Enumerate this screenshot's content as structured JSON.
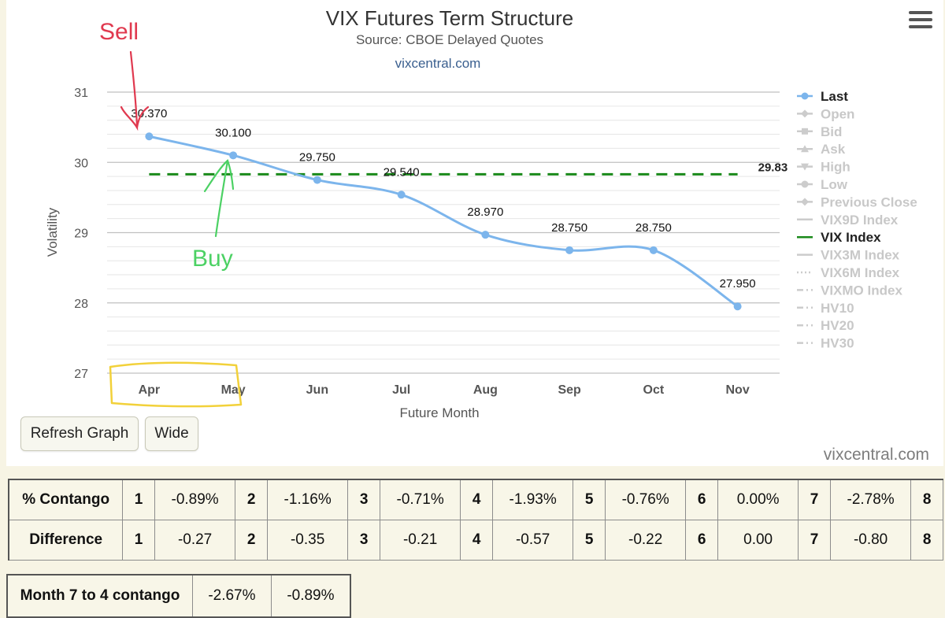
{
  "chart_data": {
    "type": "line",
    "title": "VIX Futures Term Structure",
    "subtitle": "Source: CBOE Delayed Quotes",
    "credit_link": "vixcentral.com",
    "xlabel": "Future Month",
    "ylabel": "Volatility",
    "categories": [
      "Apr",
      "May",
      "Jun",
      "Jul",
      "Aug",
      "Sep",
      "Oct",
      "Nov"
    ],
    "ylim": [
      27,
      31
    ],
    "yticks": [
      27,
      28,
      29,
      30,
      31
    ],
    "grid": true,
    "series": [
      {
        "name": "Last",
        "color": "#7cb5ec",
        "values": [
          30.37,
          30.1,
          29.75,
          29.54,
          28.97,
          28.75,
          28.75,
          27.95
        ],
        "labels": [
          "30.370",
          "30.100",
          "29.750",
          "29.540",
          "28.970",
          "28.750",
          "28.750",
          "27.950"
        ]
      },
      {
        "name": "VIX Index",
        "color": "#1a8a1a",
        "style": "dashed",
        "value": 29.83,
        "label": "29.83"
      }
    ],
    "legend": {
      "position": "right",
      "items": [
        {
          "name": "Last",
          "active": true,
          "marker": "circle-line"
        },
        {
          "name": "Open",
          "active": false,
          "marker": "diamond-line"
        },
        {
          "name": "Bid",
          "active": false,
          "marker": "square-line"
        },
        {
          "name": "Ask",
          "active": false,
          "marker": "triangle-line"
        },
        {
          "name": "High",
          "active": false,
          "marker": "triangle-down-line"
        },
        {
          "name": "Low",
          "active": false,
          "marker": "circle-line"
        },
        {
          "name": "Previous Close",
          "active": false,
          "marker": "diamond-line"
        },
        {
          "name": "VIX9D Index",
          "active": false,
          "marker": "line"
        },
        {
          "name": "VIX Index",
          "active": true,
          "marker": "line"
        },
        {
          "name": "VIX3M Index",
          "active": false,
          "marker": "line"
        },
        {
          "name": "VIX6M Index",
          "active": false,
          "marker": "dotted-line"
        },
        {
          "name": "VIXMO Index",
          "active": false,
          "marker": "dash-dot-line"
        },
        {
          "name": "HV10",
          "active": false,
          "marker": "dash-dot-line"
        },
        {
          "name": "HV20",
          "active": false,
          "marker": "dash-dot-line"
        },
        {
          "name": "HV30",
          "active": false,
          "marker": "dash-dot-line"
        }
      ]
    },
    "annotations": [
      {
        "text": "Sell",
        "color": "#e0394f",
        "target": "Apr"
      },
      {
        "text": "Buy",
        "color": "#4cd164",
        "target": "May"
      },
      {
        "type": "highlight-box",
        "color": "#f2d13a",
        "targets": [
          "Apr",
          "May"
        ]
      }
    ]
  },
  "controls": {
    "refresh_label": "Refresh Graph",
    "wide_label": "Wide",
    "menu_icon": "hamburger-menu-icon"
  },
  "watermark": "vixcentral.com",
  "contango_table": {
    "rows": [
      {
        "label": "% Contango",
        "cells": [
          {
            "n": "1",
            "v": "-0.89%"
          },
          {
            "n": "2",
            "v": "-1.16%"
          },
          {
            "n": "3",
            "v": "-0.71%"
          },
          {
            "n": "4",
            "v": "-1.93%"
          },
          {
            "n": "5",
            "v": "-0.76%"
          },
          {
            "n": "6",
            "v": "0.00%"
          },
          {
            "n": "7",
            "v": "-2.78%"
          },
          {
            "n": "8",
            "v": ""
          }
        ]
      },
      {
        "label": "Difference",
        "cells": [
          {
            "n": "1",
            "v": "-0.27"
          },
          {
            "n": "2",
            "v": "-0.35"
          },
          {
            "n": "3",
            "v": "-0.21"
          },
          {
            "n": "4",
            "v": "-0.57"
          },
          {
            "n": "5",
            "v": "-0.22"
          },
          {
            "n": "6",
            "v": "0.00"
          },
          {
            "n": "7",
            "v": "-0.80"
          },
          {
            "n": "8",
            "v": ""
          }
        ]
      }
    ]
  },
  "summary_table": {
    "label": "Month 7 to 4 contango",
    "value1": "-2.67%",
    "value2": "-0.89%"
  }
}
